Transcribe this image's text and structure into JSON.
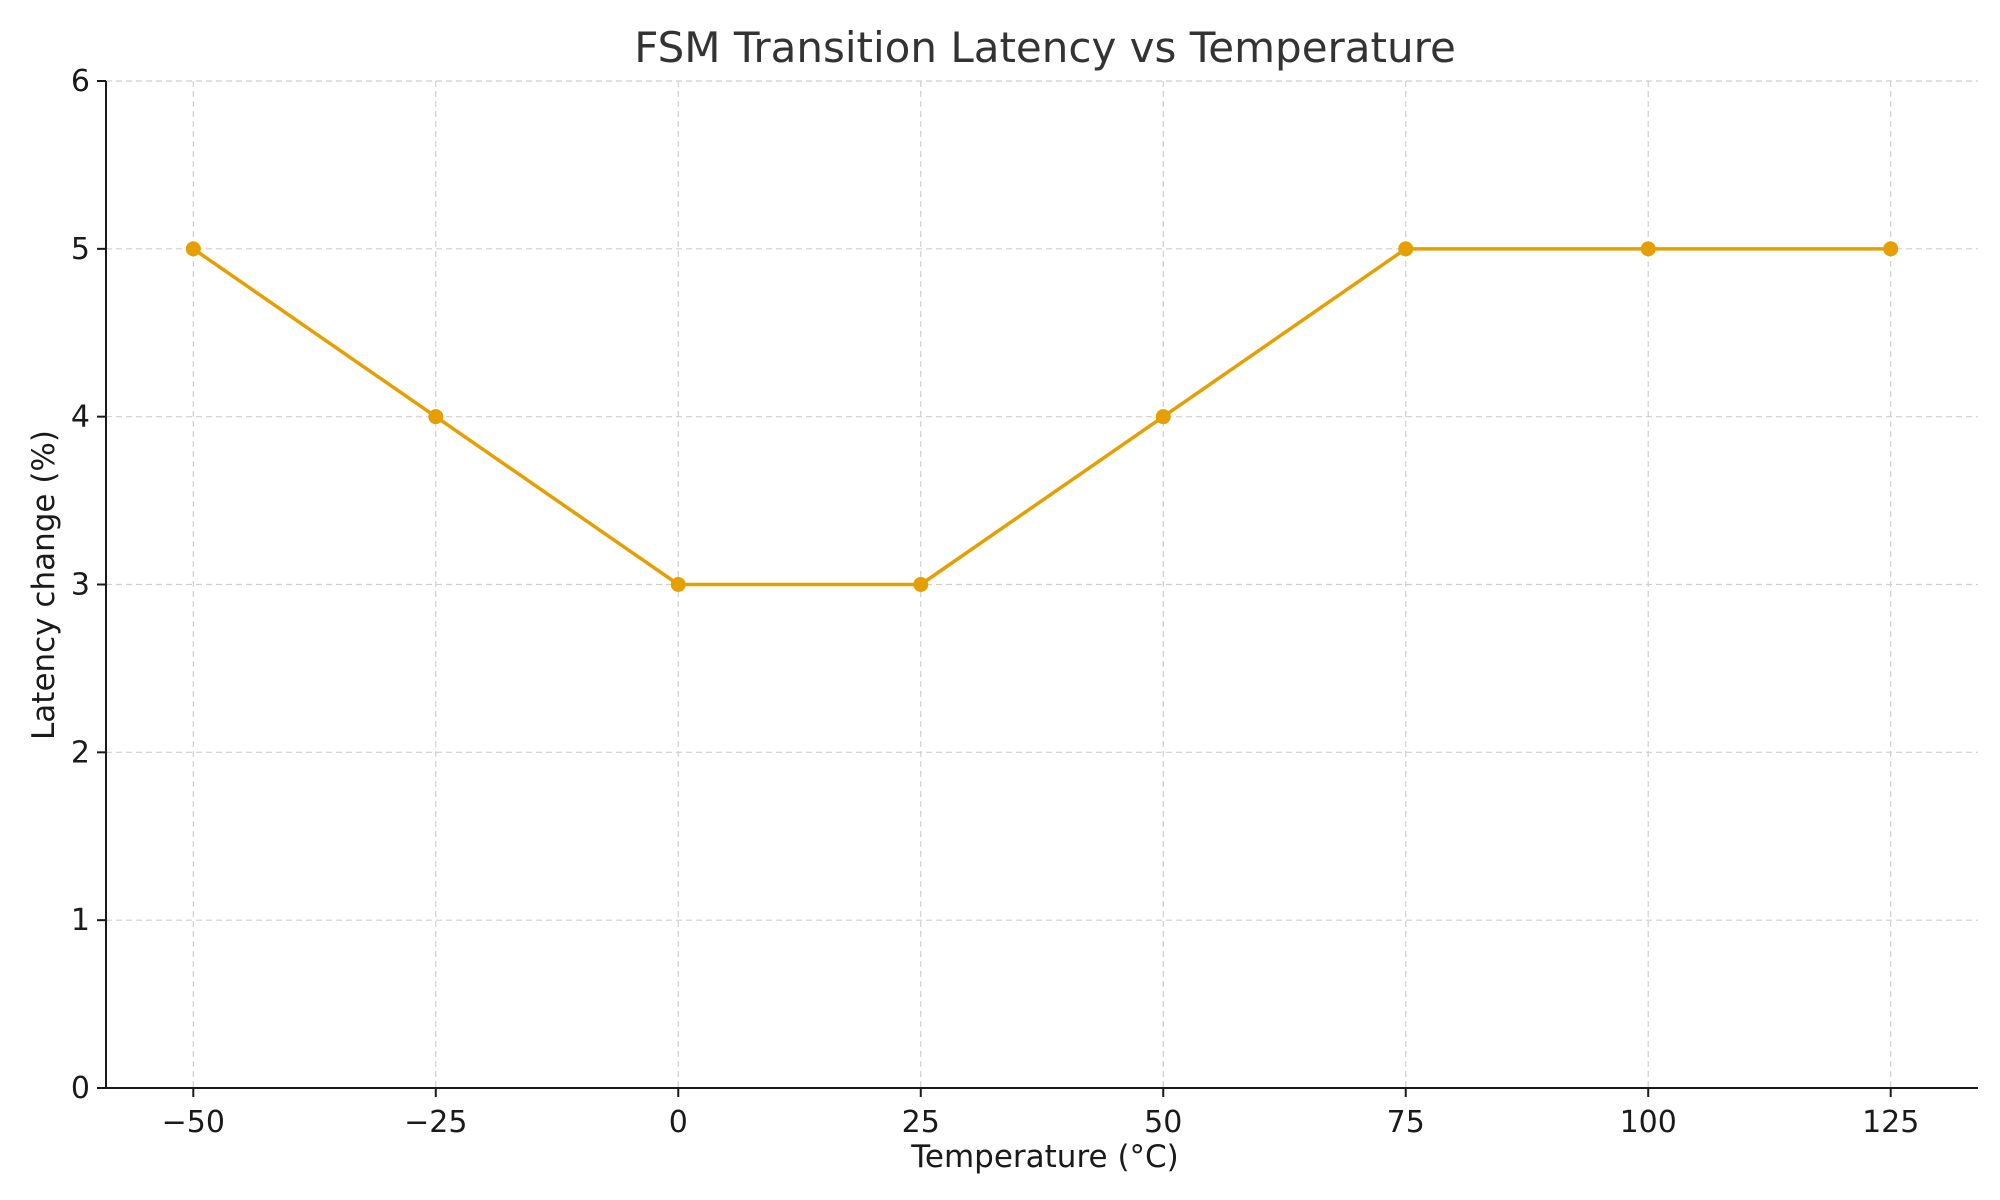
{
  "chart_data": {
    "type": "line",
    "title": "FSM Transition Latency vs Temperature",
    "xlabel": "Temperature (°C)",
    "ylabel": "Latency change (%)",
    "xlim": [
      -59,
      134
    ],
    "ylim": [
      0,
      6
    ],
    "x_ticks": [
      -50,
      -25,
      0,
      25,
      50,
      75,
      100,
      125
    ],
    "x_tick_labels": [
      "−50",
      "−25",
      "0",
      "25",
      "50",
      "75",
      "100",
      "125"
    ],
    "y_ticks": [
      0,
      1,
      2,
      3,
      4,
      5,
      6
    ],
    "y_tick_labels": [
      "0",
      "1",
      "2",
      "3",
      "4",
      "5",
      "6"
    ],
    "grid": true,
    "series": [
      {
        "x": [
          -50,
          -25,
          0,
          25,
          50,
          75,
          100,
          125
        ],
        "values": [
          5,
          4,
          3,
          3,
          4,
          5,
          5,
          5
        ],
        "color": "#E69F00",
        "marker": "circle"
      }
    ]
  }
}
